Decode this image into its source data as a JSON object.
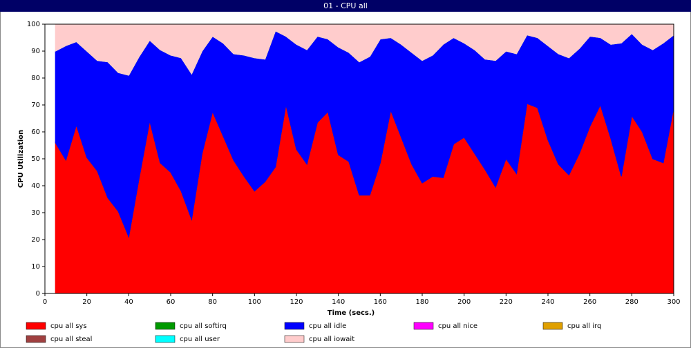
{
  "chart_data": {
    "type": "stacked_area",
    "title": "01 - CPU all",
    "xlabel": "Time (secs.)",
    "ylabel": "CPU Utilization",
    "x": [
      5,
      10,
      15,
      20,
      25,
      30,
      35,
      40,
      45,
      50,
      55,
      60,
      65,
      70,
      75,
      80,
      85,
      90,
      95,
      100,
      105,
      110,
      115,
      120,
      125,
      130,
      135,
      140,
      145,
      150,
      155,
      160,
      165,
      170,
      175,
      180,
      185,
      190,
      195,
      200,
      205,
      210,
      215,
      220,
      225,
      230,
      235,
      240,
      245,
      250,
      255,
      260,
      265,
      270,
      275,
      280,
      285,
      290,
      295,
      300
    ],
    "series": [
      {
        "name": "cpu all sys",
        "color": "#ff0000",
        "values": [
          56,
          49.5,
          62.5,
          50.5,
          45.5,
          35.5,
          30.5,
          21,
          43,
          64,
          48.5,
          45,
          38,
          27.5,
          52,
          67.5,
          58.5,
          49.5,
          43.5,
          38,
          41.5,
          47,
          70,
          53.5,
          48,
          63.5,
          67.5,
          51.5,
          49,
          36.5,
          36.5,
          48.5,
          68,
          58,
          48,
          41,
          43.5,
          43,
          55.5,
          58,
          52,
          46,
          39.5,
          50,
          44.5,
          70.5,
          69,
          57,
          48,
          44,
          52,
          62,
          70,
          57.5,
          43.5,
          66,
          60,
          50,
          48.5,
          69
        ]
      },
      {
        "name": "cpu all softirq",
        "color": "#009900",
        "values": [
          0,
          0,
          0,
          0,
          0,
          0,
          0,
          0,
          0,
          0,
          0,
          0,
          0,
          0,
          0,
          0,
          0,
          0,
          0,
          0,
          0,
          0,
          0,
          0,
          0,
          0,
          0,
          0,
          0,
          0,
          0,
          0,
          0,
          0,
          0,
          0,
          0,
          0,
          0,
          0,
          0,
          0,
          0,
          0,
          0,
          0,
          0,
          0,
          0,
          0,
          0,
          0,
          0,
          0,
          0,
          0,
          0,
          0,
          0,
          0
        ]
      },
      {
        "name": "cpu all idle",
        "color": "#0000ff",
        "values": [
          34,
          42.5,
          31,
          39.5,
          41,
          50.5,
          51.5,
          60,
          45,
          30,
          42,
          43.5,
          49.5,
          54,
          38,
          28,
          34.5,
          39.5,
          45,
          49.5,
          45.5,
          50.5,
          25.5,
          39,
          42.5,
          32,
          27,
          40,
          40.5,
          49.5,
          51.5,
          46,
          27,
          34.5,
          41.5,
          45.5,
          45,
          49.5,
          39.5,
          35,
          38.5,
          41,
          47,
          40,
          44.5,
          25.5,
          26,
          35,
          41,
          43.5,
          39,
          33.5,
          25,
          35,
          49.5,
          30.5,
          32.5,
          40.5,
          44.5,
          27
        ]
      },
      {
        "name": "cpu all nice",
        "color": "#ff00ff",
        "values": [
          0,
          0,
          0,
          0,
          0,
          0,
          0,
          0,
          0,
          0,
          0,
          0,
          0,
          0,
          0,
          0,
          0,
          0,
          0,
          0,
          0,
          0,
          0,
          0,
          0,
          0,
          0,
          0,
          0,
          0,
          0,
          0,
          0,
          0,
          0,
          0,
          0,
          0,
          0,
          0,
          0,
          0,
          0,
          0,
          0,
          0,
          0,
          0,
          0,
          0,
          0,
          0,
          0,
          0,
          0,
          0,
          0,
          0,
          0,
          0
        ]
      },
      {
        "name": "cpu all irq",
        "color": "#e0a000",
        "values": [
          0,
          0,
          0,
          0,
          0,
          0,
          0,
          0,
          0,
          0,
          0,
          0,
          0,
          0,
          0,
          0,
          0,
          0,
          0,
          0,
          0,
          0,
          0,
          0,
          0,
          0,
          0,
          0,
          0,
          0,
          0,
          0,
          0,
          0,
          0,
          0,
          0,
          0,
          0,
          0,
          0,
          0,
          0,
          0,
          0,
          0,
          0,
          0,
          0,
          0,
          0,
          0,
          0,
          0,
          0,
          0,
          0,
          0,
          0,
          0
        ]
      },
      {
        "name": "cpu all steal",
        "color": "#a04040",
        "values": [
          0,
          0,
          0,
          0,
          0,
          0,
          0,
          0,
          0,
          0,
          0,
          0,
          0,
          0,
          0,
          0,
          0,
          0,
          0,
          0,
          0,
          0,
          0,
          0,
          0,
          0,
          0,
          0,
          0,
          0,
          0,
          0,
          0,
          0,
          0,
          0,
          0,
          0,
          0,
          0,
          0,
          0,
          0,
          0,
          0,
          0,
          0,
          0,
          0,
          0,
          0,
          0,
          0,
          0,
          0,
          0,
          0,
          0,
          0,
          0
        ]
      },
      {
        "name": "cpu all user",
        "color": "#00ffff",
        "values": [
          0,
          0,
          0,
          0,
          0,
          0,
          0,
          0,
          0,
          0,
          0,
          0,
          0,
          0,
          0,
          0,
          0,
          0,
          0,
          0,
          0,
          0,
          0,
          0,
          0,
          0,
          0,
          0,
          0,
          0,
          0,
          0,
          0,
          0,
          0,
          0,
          0,
          0,
          0,
          0,
          0,
          0,
          0,
          0,
          0,
          0,
          0,
          0,
          0,
          0,
          0,
          0,
          0,
          0,
          0,
          0,
          0,
          0,
          0,
          0
        ]
      },
      {
        "name": "cpu all iowait",
        "color": "#ffcccc",
        "values": [
          10,
          8,
          6.5,
          10,
          13.5,
          14,
          18,
          19,
          12,
          6,
          9.5,
          11.5,
          12.5,
          18.5,
          10,
          4.5,
          7,
          11,
          11.5,
          12.5,
          13,
          2.5,
          4.5,
          7.5,
          9.5,
          4.5,
          5.5,
          8.5,
          10.5,
          14,
          12,
          5.5,
          5,
          7.5,
          10.5,
          13.5,
          11.5,
          7.5,
          5,
          7,
          9.5,
          13,
          13.5,
          10,
          11,
          4,
          5,
          8,
          11,
          12.5,
          9,
          4.5,
          5,
          7.5,
          7,
          3.5,
          7.5,
          9.5,
          7,
          4
        ]
      }
    ],
    "xlim": [
      0,
      300
    ],
    "xticks": [
      0,
      20,
      40,
      60,
      80,
      100,
      120,
      140,
      160,
      180,
      200,
      220,
      240,
      260,
      280,
      300
    ],
    "ylim": [
      0,
      100
    ],
    "yticks": [
      0,
      10,
      20,
      30,
      40,
      50,
      60,
      70,
      80,
      90,
      100
    ],
    "grid": false
  }
}
